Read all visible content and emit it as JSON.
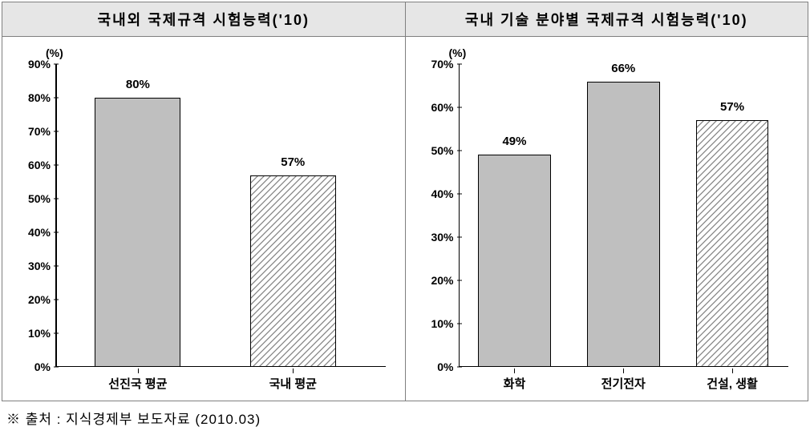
{
  "header": {
    "left_title": "국내외 국제규격 시험능력('10)",
    "right_title": "국내 기술 분야별 국제규격 시험능력('10)"
  },
  "left_chart": {
    "type": "bar",
    "unit_label": "(%)",
    "ylim": [
      0,
      90
    ],
    "ytick_step": 10,
    "ytick_suffix": "%",
    "background_color": "#ffffff",
    "axis_color": "#000000",
    "bars": [
      {
        "category": "선진국 평균",
        "value": 80,
        "value_label": "80%",
        "fill": "solid",
        "color": "#bfbfbf"
      },
      {
        "category": "국내 평균",
        "value": 57,
        "value_label": "57%",
        "fill": "hatched",
        "color": "#ffffff",
        "hatch_color": "#808080"
      }
    ],
    "bar_width_pct": 26,
    "bar_positions_pct": [
      25,
      72
    ],
    "label_fontsize": 15,
    "tick_fontsize": 14
  },
  "right_chart": {
    "type": "bar",
    "unit_label": "(%)",
    "ylim": [
      0,
      70
    ],
    "ytick_step": 10,
    "ytick_suffix": "%",
    "background_color": "#ffffff",
    "axis_color": "#000000",
    "bars": [
      {
        "category": "화학",
        "value": 49,
        "value_label": "49%",
        "fill": "solid",
        "color": "#bfbfbf"
      },
      {
        "category": "전기전자",
        "value": 66,
        "value_label": "66%",
        "fill": "solid",
        "color": "#bfbfbf"
      },
      {
        "category": "건설, 생활",
        "value": 57,
        "value_label": "57%",
        "fill": "hatched",
        "color": "#ffffff",
        "hatch_color": "#808080"
      }
    ],
    "bar_width_pct": 22,
    "bar_positions_pct": [
      17,
      50,
      83
    ],
    "label_fontsize": 15,
    "tick_fontsize": 14
  },
  "footer": {
    "text": "※ 출처 : 지식경제부 보도자료 (2010.03)"
  }
}
